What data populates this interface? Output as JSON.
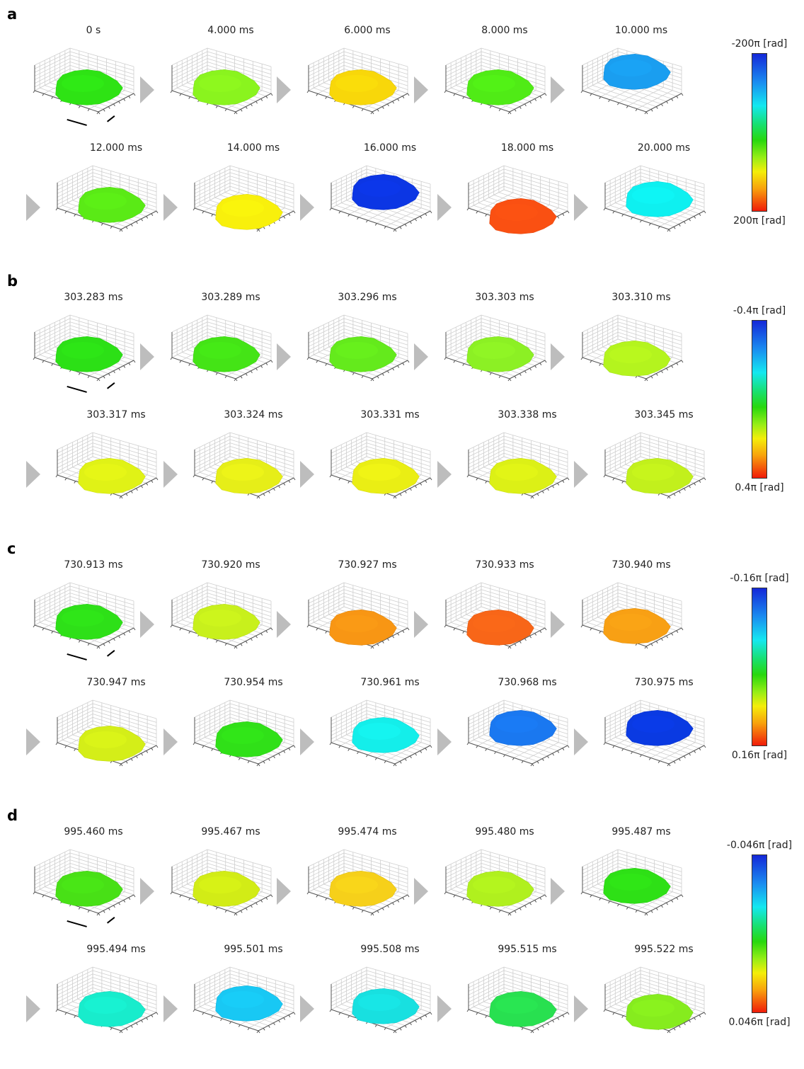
{
  "panels": [
    {
      "letter": "a",
      "labels": [
        "0 s",
        "4.000 ms",
        "6.000 ms",
        "8.000 ms",
        "10.000 ms",
        "12.000 ms",
        "14.000 ms",
        "16.000 ms",
        "18.000 ms",
        "20.000 ms"
      ],
      "colors": [
        "#2ee314",
        "#8af41e",
        "#f8d70a",
        "#50eb16",
        "#1a9ef0",
        "#5aea16",
        "#f8f00c",
        "#0c36e4",
        "#fa5012",
        "#0ef0f0"
      ],
      "offsets": [
        0,
        0,
        0,
        0,
        -22,
        0,
        10,
        -18,
        16,
        -8
      ],
      "colorbar": {
        "min_label": "-200π [rad]",
        "max_label": "200π [rad]"
      }
    },
    {
      "letter": "b",
      "labels": [
        "303.283 ms",
        "303.289 ms",
        "303.296 ms",
        "303.303 ms",
        "303.310 ms",
        "303.317 ms",
        "303.324 ms",
        "303.331 ms",
        "303.338 ms",
        "303.345 ms"
      ],
      "colors": [
        "#2ce016",
        "#44e416",
        "#64ea1c",
        "#8cf024",
        "#b4f41e",
        "#e0f216",
        "#e6ee18",
        "#eaee14",
        "#dcf016",
        "#c2f01c"
      ],
      "offsets": [
        0,
        0,
        0,
        0,
        6,
        6,
        6,
        6,
        6,
        6
      ],
      "colorbar": {
        "min_label": "-0.4π [rad]",
        "max_label": "0.4π [rad]"
      }
    },
    {
      "letter": "c",
      "labels": [
        "730.913 ms",
        "730.920 ms",
        "730.927 ms",
        "730.933 ms",
        "730.940 ms",
        "730.947 ms",
        "730.954 ms",
        "730.961 ms",
        "730.968 ms",
        "730.975 ms"
      ],
      "colors": [
        "#2ee018",
        "#c8f01c",
        "#f89614",
        "#f86618",
        "#f8a014",
        "#d4ee18",
        "#30e018",
        "#14eeea",
        "#1a78f0",
        "#0a3ae2"
      ],
      "offsets": [
        0,
        0,
        8,
        8,
        6,
        6,
        0,
        -6,
        -16,
        -16
      ],
      "colorbar": {
        "min_label": "-0.16π [rad]",
        "max_label": "0.16π [rad]"
      }
    },
    {
      "letter": "d",
      "labels": [
        "995.460 ms",
        "995.467 ms",
        "995.474 ms",
        "995.480 ms",
        "995.487 ms",
        "995.494 ms",
        "995.501 ms",
        "995.508 ms",
        "995.515 ms",
        "995.522 ms"
      ],
      "colors": [
        "#48e016",
        "#d2ec16",
        "#f6d01a",
        "#b0f01e",
        "#2ee016",
        "#18eccc",
        "#18c8f4",
        "#18e0e0",
        "#28e050",
        "#86ec1e"
      ],
      "offsets": [
        0,
        0,
        0,
        0,
        -4,
        4,
        -4,
        0,
        4,
        8
      ],
      "colorbar": {
        "min_label": "-0.046π [rad]",
        "max_label": "0.046π [rad]"
      }
    }
  ]
}
